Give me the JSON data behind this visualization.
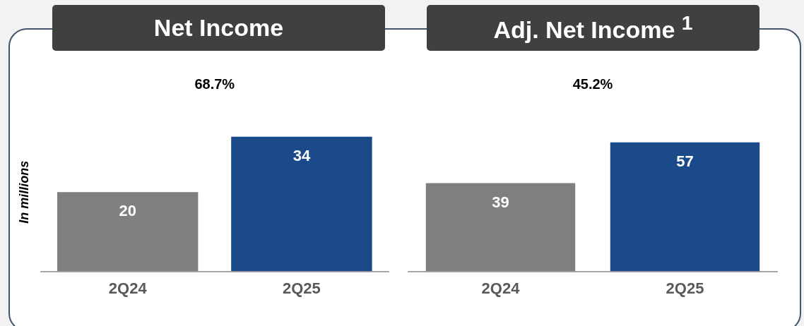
{
  "chart_data": [
    {
      "type": "bar",
      "title": "Net Income",
      "ylabel": "In millions",
      "categories": [
        "2Q24",
        "2Q25"
      ],
      "values": [
        20,
        34
      ],
      "colors": [
        "#7f7f7f",
        "#1a4a8a"
      ],
      "tick_labels": "x",
      "data_labels": true,
      "annotations": [
        "68.7%"
      ],
      "grid": false,
      "legend": false
    },
    {
      "type": "bar",
      "title": "Adj. Net Income $^{1}$",
      "categories": [
        "2Q24",
        "2Q25"
      ],
      "values": [
        39,
        57
      ],
      "colors": [
        "#7f7f7f",
        "#1a4a8a"
      ],
      "tick_labels": "x",
      "data_labels": true,
      "annotations": [
        "45.2%"
      ],
      "grid": false,
      "legend": false
    }
  ]
}
